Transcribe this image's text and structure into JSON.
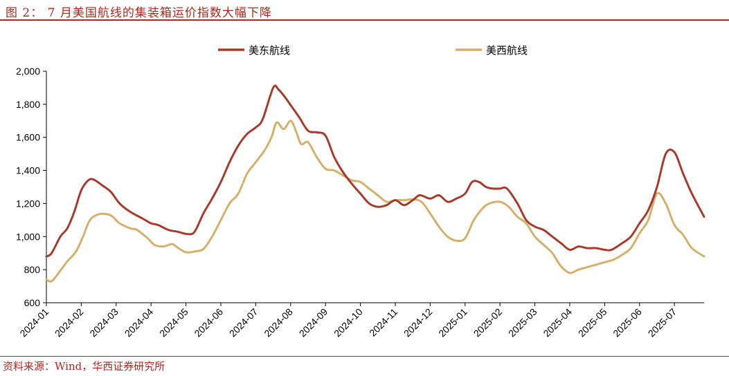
{
  "header": {
    "title": "图 2：  7 月美国航线的集装箱运价指数大幅下降"
  },
  "footer": {
    "source": "资料来源：Wind，华西证券研究所"
  },
  "colors": {
    "accent": "#b5251d",
    "series_east": "#a83a2c",
    "series_west": "#d4b06a"
  },
  "chart_data": {
    "type": "line",
    "title": "",
    "xlabel": "",
    "ylabel": "",
    "ylim": [
      600,
      2000
    ],
    "yticks": [
      "600",
      "800",
      "1,000",
      "1,200",
      "1,400",
      "1,600",
      "1,800",
      "2,000"
    ],
    "xticks": [
      "2024-01",
      "2024-02",
      "2024-03",
      "2024-04",
      "2024-05",
      "2024-06",
      "2024-07",
      "2024-08",
      "2024-09",
      "2024-10",
      "2024-11",
      "2024-12",
      "2025-01",
      "2025-02",
      "2025-03",
      "2025-04",
      "2025-05",
      "2025-06",
      "2025-07"
    ],
    "xlim": [
      0,
      18.85
    ],
    "legend_position": "top-center",
    "grid": false,
    "series": [
      {
        "name": "美东航线",
        "color": "#a83a2c",
        "x": [
          0,
          0.15,
          0.4,
          0.6,
          0.8,
          1.0,
          1.2,
          1.35,
          1.6,
          1.85,
          2.1,
          2.4,
          2.75,
          3.0,
          3.2,
          3.5,
          3.75,
          4.05,
          4.25,
          4.5,
          4.75,
          5.0,
          5.25,
          5.5,
          5.75,
          6.0,
          6.2,
          6.5,
          6.65,
          6.85,
          7.05,
          7.25,
          7.5,
          7.75,
          8.0,
          8.25,
          8.5,
          8.75,
          9.0,
          9.25,
          9.5,
          9.75,
          10.0,
          10.25,
          10.5,
          10.7,
          11.0,
          11.25,
          11.5,
          11.75,
          12.0,
          12.2,
          12.4,
          12.6,
          12.8,
          13.0,
          13.2,
          13.5,
          13.75,
          14.0,
          14.25,
          14.5,
          14.75,
          15.0,
          15.25,
          15.5,
          15.75,
          16.0,
          16.2,
          16.5,
          16.75,
          17.0,
          17.25,
          17.5,
          17.75,
          18.0,
          18.25,
          18.5,
          18.85
        ],
        "values": [
          880,
          900,
          1000,
          1050,
          1150,
          1280,
          1340,
          1345,
          1310,
          1270,
          1200,
          1150,
          1110,
          1080,
          1070,
          1040,
          1030,
          1015,
          1030,
          1140,
          1230,
          1330,
          1450,
          1550,
          1620,
          1660,
          1710,
          1900,
          1890,
          1840,
          1780,
          1720,
          1640,
          1630,
          1610,
          1480,
          1390,
          1320,
          1260,
          1200,
          1180,
          1190,
          1220,
          1190,
          1220,
          1250,
          1230,
          1250,
          1210,
          1230,
          1260,
          1330,
          1330,
          1300,
          1290,
          1290,
          1290,
          1200,
          1100,
          1060,
          1040,
          1000,
          960,
          920,
          940,
          930,
          930,
          920,
          920,
          960,
          1000,
          1080,
          1160,
          1300,
          1500,
          1510,
          1380,
          1260,
          1120
        ]
      },
      {
        "name": "美西航线",
        "color": "#d4b06a",
        "x": [
          0,
          0.15,
          0.35,
          0.6,
          0.85,
          1.05,
          1.25,
          1.5,
          1.75,
          1.9,
          2.1,
          2.4,
          2.6,
          2.9,
          3.1,
          3.35,
          3.6,
          3.75,
          4.0,
          4.25,
          4.5,
          4.75,
          5.0,
          5.25,
          5.5,
          5.75,
          6.0,
          6.25,
          6.45,
          6.6,
          6.8,
          7.0,
          7.15,
          7.3,
          7.5,
          7.75,
          8.0,
          8.25,
          8.5,
          8.75,
          9.0,
          9.25,
          9.5,
          9.75,
          10.0,
          10.25,
          10.5,
          10.75,
          11.0,
          11.25,
          11.5,
          11.75,
          12.0,
          12.25,
          12.5,
          12.7,
          13.0,
          13.25,
          13.5,
          13.75,
          14.0,
          14.25,
          14.5,
          14.75,
          15.0,
          15.25,
          15.5,
          15.75,
          16.0,
          16.25,
          16.5,
          16.75,
          17.0,
          17.25,
          17.5,
          17.75,
          18.0,
          18.25,
          18.5,
          18.85
        ],
        "values": [
          740,
          730,
          780,
          850,
          910,
          1000,
          1100,
          1135,
          1135,
          1120,
          1080,
          1050,
          1040,
          990,
          950,
          940,
          955,
          935,
          905,
          910,
          925,
          1000,
          1100,
          1200,
          1260,
          1380,
          1450,
          1520,
          1600,
          1690,
          1650,
          1700,
          1640,
          1560,
          1570,
          1480,
          1410,
          1400,
          1370,
          1340,
          1330,
          1290,
          1250,
          1210,
          1220,
          1220,
          1225,
          1210,
          1140,
          1060,
          1000,
          975,
          990,
          1100,
          1170,
          1200,
          1210,
          1180,
          1120,
          1080,
          1000,
          950,
          900,
          820,
          780,
          800,
          815,
          830,
          845,
          860,
          890,
          930,
          1020,
          1100,
          1260,
          1200,
          1070,
          1010,
          930,
          880
        ]
      }
    ]
  }
}
